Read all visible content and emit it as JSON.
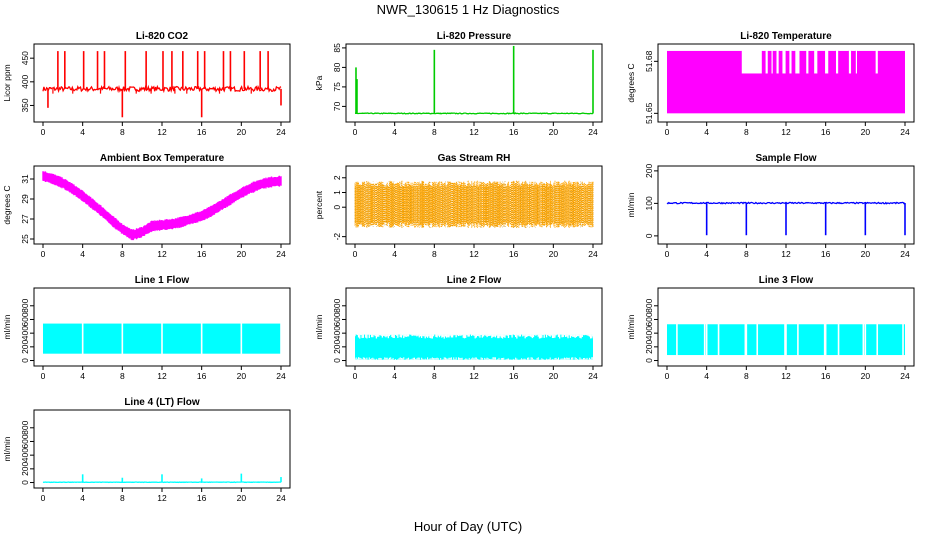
{
  "figure": {
    "title": "NWR_130615  1 Hz Diagnostics",
    "xlabel": "Hour of Day (UTC)"
  },
  "chart_data": [
    {
      "type": "line",
      "title": "Li-820 CO2",
      "xlabel": "",
      "ylabel": "Licor ppm",
      "color": "#ff0000",
      "xlim": [
        0,
        24
      ],
      "ylim": [
        315,
        480
      ],
      "xticks": [
        "0",
        "4",
        "8",
        "12",
        "16",
        "20",
        "24"
      ],
      "yticks": [
        350,
        400,
        450
      ],
      "baseline": 385,
      "noise": 5,
      "spikes": [
        [
          0.5,
          345
        ],
        [
          1.5,
          465
        ],
        [
          2.2,
          465
        ],
        [
          4.1,
          465
        ],
        [
          5.5,
          465
        ],
        [
          6.2,
          465
        ],
        [
          8.0,
          325
        ],
        [
          8.3,
          465
        ],
        [
          10.4,
          465
        ],
        [
          12.1,
          465
        ],
        [
          13.0,
          465
        ],
        [
          14.1,
          465
        ],
        [
          15.6,
          465
        ],
        [
          16.0,
          325
        ],
        [
          16.3,
          465
        ],
        [
          18.2,
          465
        ],
        [
          18.9,
          465
        ],
        [
          20.3,
          465
        ],
        [
          21.9,
          465
        ],
        [
          22.7,
          465
        ],
        [
          24.0,
          350
        ]
      ],
      "dips": [
        [
          1.0,
          375
        ],
        [
          3.0,
          375
        ],
        [
          5.8,
          375
        ],
        [
          9.4,
          375
        ],
        [
          10.9,
          375
        ],
        [
          13.3,
          375
        ],
        [
          14.5,
          375
        ],
        [
          17.8,
          375
        ],
        [
          21.0,
          375
        ]
      ]
    },
    {
      "type": "line",
      "title": "Li-820 Pressure",
      "xlabel": "",
      "ylabel": "kPa",
      "color": "#00cc00",
      "xlim": [
        0,
        24
      ],
      "ylim": [
        66,
        86
      ],
      "xticks": [
        "0",
        "4",
        "8",
        "12",
        "16",
        "20",
        "24"
      ],
      "yticks": [
        70,
        75,
        80,
        85
      ],
      "baseline": 68.2,
      "noise": 0.1,
      "spikes": [
        [
          0.1,
          80
        ],
        [
          0.2,
          77
        ],
        [
          8.0,
          84.5
        ],
        [
          16.0,
          85.5
        ],
        [
          24.0,
          84.5
        ]
      ]
    },
    {
      "type": "band",
      "title": "Li-820 Temperature",
      "xlabel": "",
      "ylabel": "degrees C",
      "color": "#ff00ff",
      "xlim": [
        0,
        24
      ],
      "ylim": [
        51.645,
        51.69
      ],
      "xticks": [
        "0",
        "4",
        "8",
        "12",
        "16",
        "20",
        "24"
      ],
      "yticks": [
        51.65,
        51.68
      ],
      "low": 51.65,
      "high": 51.686,
      "high_drop": 51.673,
      "drop_segments": [
        [
          7.5,
          9.6
        ],
        [
          9.9,
          10.2
        ],
        [
          10.5,
          10.7
        ],
        [
          11.0,
          11.3
        ],
        [
          11.6,
          12.0
        ],
        [
          12.3,
          12.6
        ],
        [
          12.9,
          13.4
        ],
        [
          14.0,
          14.3
        ],
        [
          14.8,
          15.2
        ],
        [
          15.9,
          16.3
        ],
        [
          17.0,
          17.3
        ],
        [
          18.3,
          18.6
        ],
        [
          19.0,
          19.2
        ],
        [
          21.0,
          21.3
        ]
      ]
    },
    {
      "type": "band",
      "title": "Ambient Box Temperature",
      "xlabel": "",
      "ylabel": "degrees C",
      "color": "#ff00ff",
      "xlim": [
        0,
        24
      ],
      "ylim": [
        24.5,
        32.3
      ],
      "xticks": [
        "0",
        "4",
        "8",
        "12",
        "16",
        "20",
        "24"
      ],
      "yticks": [
        25,
        27,
        29,
        31
      ],
      "curve": [
        [
          0,
          31.3
        ],
        [
          1,
          31.0
        ],
        [
          2,
          30.6
        ],
        [
          3,
          30.0
        ],
        [
          4,
          29.3
        ],
        [
          5,
          28.5
        ],
        [
          6,
          27.7
        ],
        [
          7,
          26.8
        ],
        [
          8,
          26.0
        ],
        [
          9,
          25.4
        ],
        [
          10,
          25.7
        ],
        [
          11,
          26.3
        ],
        [
          12,
          26.4
        ],
        [
          13,
          26.5
        ],
        [
          14,
          26.7
        ],
        [
          15,
          27.0
        ],
        [
          16,
          27.3
        ],
        [
          17,
          27.8
        ],
        [
          18,
          28.4
        ],
        [
          19,
          29.0
        ],
        [
          20,
          29.6
        ],
        [
          21,
          30.1
        ],
        [
          22,
          30.5
        ],
        [
          23,
          30.7
        ],
        [
          24,
          30.8
        ]
      ],
      "halfwidth": 0.55
    },
    {
      "type": "band",
      "title": "Gas Stream RH",
      "xlabel": "",
      "ylabel": "percent",
      "color": "#ffa500",
      "xlim": [
        0,
        24
      ],
      "ylim": [
        -2.5,
        2.8
      ],
      "xticks": [
        "0",
        "4",
        "8",
        "12",
        "16",
        "20",
        "24"
      ],
      "yticks": [
        -2,
        0,
        1,
        2
      ],
      "curve": [
        [
          0,
          0.2
        ],
        [
          24,
          0.2
        ]
      ],
      "halfwidth": 1.6,
      "dotted": true
    },
    {
      "type": "line",
      "title": "Sample Flow",
      "xlabel": "",
      "ylabel": "ml/min",
      "color": "#0000ff",
      "xlim": [
        0,
        24
      ],
      "ylim": [
        -25,
        215
      ],
      "xticks": [
        "0",
        "4",
        "8",
        "12",
        "16",
        "20",
        "24"
      ],
      "yticks": [
        0,
        100,
        200
      ],
      "baseline": 101,
      "noise": 2,
      "spikes": [
        [
          4.0,
          2
        ],
        [
          8.0,
          2
        ],
        [
          12.0,
          2
        ],
        [
          16.0,
          2
        ],
        [
          20.0,
          2
        ],
        [
          24.0,
          2
        ]
      ]
    },
    {
      "type": "band",
      "title": "Line 1 Flow",
      "xlabel": "",
      "ylabel": "ml/min",
      "color": "#00ffff",
      "xlim": [
        0,
        24
      ],
      "ylim": [
        -80,
        1060
      ],
      "xticks": [
        "0",
        "4",
        "8",
        "12",
        "16",
        "20",
        "24"
      ],
      "yticks": [
        0,
        200,
        400,
        600,
        800
      ],
      "low": 100,
      "high": 540,
      "gaps": [
        4.0,
        8.0,
        12.0,
        16.0,
        20.0,
        24.0
      ]
    },
    {
      "type": "band",
      "title": "Line 2 Flow",
      "xlabel": "",
      "ylabel": "ml/min",
      "color": "#00ffff",
      "xlim": [
        0,
        24
      ],
      "ylim": [
        -80,
        1060
      ],
      "xticks": [
        "0",
        "4",
        "8",
        "12",
        "16",
        "20",
        "24"
      ],
      "yticks": [
        0,
        200,
        400,
        600,
        800
      ],
      "low": 10,
      "high": 380,
      "ragged": true,
      "gaps": []
    },
    {
      "type": "band",
      "title": "Line 3 Flow",
      "xlabel": "",
      "ylabel": "ml/min",
      "color": "#00ffff",
      "xlim": [
        0,
        24
      ],
      "ylim": [
        -80,
        1060
      ],
      "xticks": [
        "0",
        "4",
        "8",
        "12",
        "16",
        "20",
        "24"
      ],
      "yticks": [
        0,
        200,
        400,
        600,
        800
      ],
      "low": 80,
      "high": 530,
      "gaps": [
        1.0,
        3.8,
        4.0,
        5.2,
        7.9,
        8.0,
        9.1,
        11.9,
        12.0,
        13.2,
        15.9,
        16.0,
        17.3,
        19.8,
        20.0,
        21.2,
        23.8
      ]
    },
    {
      "type": "line",
      "title": "Line 4 (LT) Flow",
      "xlabel": "",
      "ylabel": "ml/min",
      "color": "#00ffff",
      "xlim": [
        0,
        24
      ],
      "ylim": [
        -80,
        1060
      ],
      "xticks": [
        "0",
        "4",
        "8",
        "12",
        "16",
        "20",
        "24"
      ],
      "yticks": [
        0,
        200,
        400,
        600,
        800
      ],
      "baseline": 5,
      "noise": 3,
      "spikes": [
        [
          4.0,
          120
        ],
        [
          8.0,
          70
        ],
        [
          12.0,
          120
        ],
        [
          16.0,
          60
        ],
        [
          20.0,
          130
        ],
        [
          24.0,
          80
        ]
      ]
    }
  ]
}
